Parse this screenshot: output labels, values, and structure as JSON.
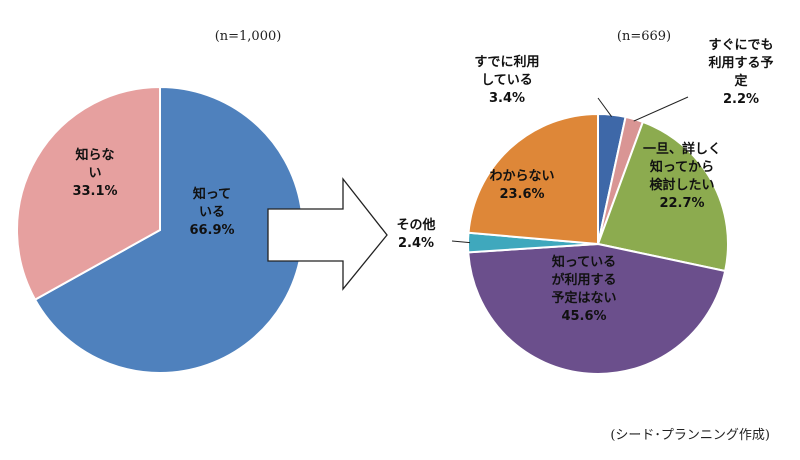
{
  "colors": {
    "blue": "#4f81bd",
    "pink": "#e6a09f",
    "dark_blue": "#3e68a8",
    "light_pink": "#d99594",
    "green": "#8cab4f",
    "orange": "#de8738",
    "teal": "#3fa8bd",
    "purple": "#6b4f8c",
    "edge": "#ffffff"
  },
  "chart_data": [
    {
      "type": "pie",
      "title": "(n=1,000)",
      "start_angle_deg": 0,
      "direction": "clockwise",
      "slices": [
        {
          "label": [
            "知って",
            "いる"
          ],
          "pct_label": "66.9%",
          "value": 66.9,
          "color": "#4f81bd"
        },
        {
          "label": [
            "知らな",
            "い"
          ],
          "pct_label": "33.1%",
          "value": 33.1,
          "color": "#e6a09f"
        }
      ]
    },
    {
      "type": "pie",
      "title": "(n=669)",
      "start_angle_deg": 0,
      "direction": "clockwise",
      "slices": [
        {
          "label": [
            "すでに利用",
            "している"
          ],
          "pct_label": "3.4%",
          "value": 3.4,
          "color": "#3e68a8"
        },
        {
          "label": [
            "すぐにでも",
            "利用する予",
            "定"
          ],
          "pct_label": "2.2%",
          "value": 2.2,
          "color": "#d99594"
        },
        {
          "label": [
            "一旦、詳しく",
            "知ってから",
            "検討したい"
          ],
          "pct_label": "22.7%",
          "value": 22.7,
          "color": "#8cab4f"
        },
        {
          "label": [
            "知っている",
            "が利用する",
            "予定はない"
          ],
          "pct_label": "45.6%",
          "value": 45.6,
          "color": "#6b4f8c"
        },
        {
          "label": [
            "その他"
          ],
          "pct_label": "2.4%",
          "value": 2.4,
          "color": "#3fa8bd"
        },
        {
          "label": [
            "わからない"
          ],
          "pct_label": "23.6%",
          "value": 23.6,
          "color": "#de8738"
        }
      ]
    }
  ],
  "source": "(シード･プランニング作成)"
}
